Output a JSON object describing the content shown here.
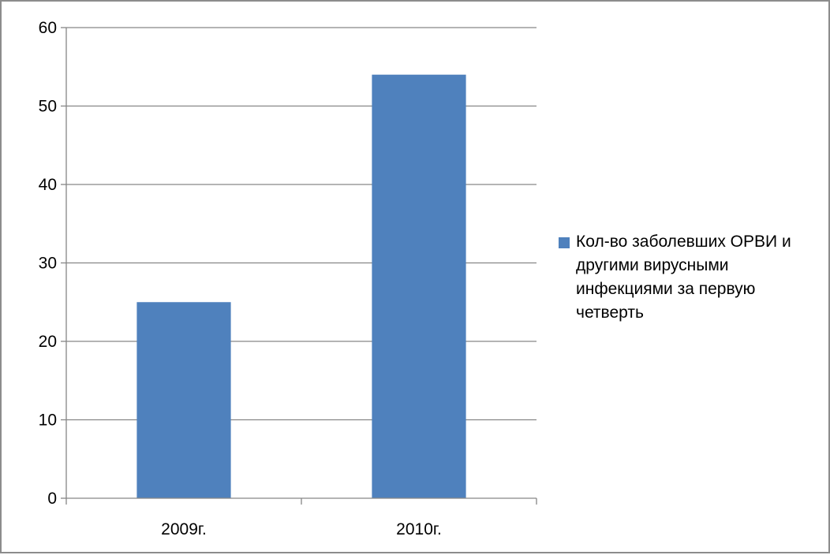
{
  "chart_data": {
    "type": "bar",
    "categories": [
      "2009г.",
      "2010г."
    ],
    "series": [
      {
        "name": "Кол-во заболевших ОРВИ и другими вирусными инфекциями за первую четверть",
        "values": [
          25,
          54
        ],
        "color": "#4f81bd"
      }
    ],
    "ylim": [
      0,
      60
    ],
    "yticks": [
      "0",
      "10",
      "20",
      "30",
      "40",
      "50",
      "60"
    ],
    "grid": true,
    "legend_position": "right"
  },
  "colors": {
    "bar": "#4f81bd",
    "grid": "#868686",
    "border": "#8c8c8c"
  }
}
